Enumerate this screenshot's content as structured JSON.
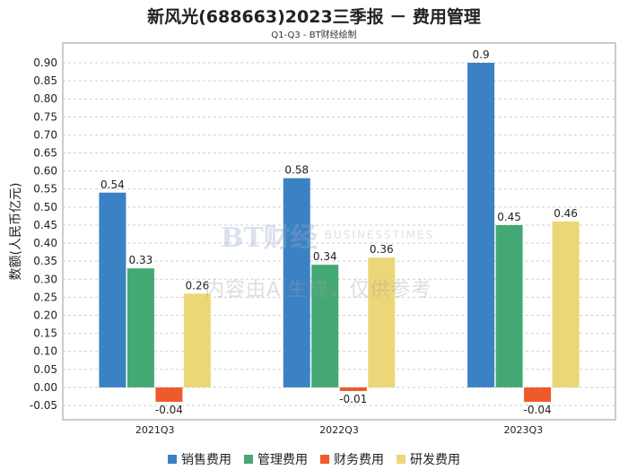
{
  "chart_data": {
    "type": "bar",
    "title": "新风光(688663)2023三季报 － 费用管理",
    "subtitle": "Q1-Q3 - BT财经绘制",
    "ylabel": "数额(人民币亿元)",
    "xlabel": "",
    "ylim": [
      -0.05,
      0.9
    ],
    "yticks": [
      "0.90",
      "0.85",
      "0.80",
      "0.75",
      "0.70",
      "0.65",
      "0.60",
      "0.55",
      "0.50",
      "0.45",
      "0.40",
      "0.35",
      "0.30",
      "0.25",
      "0.20",
      "0.15",
      "0.10",
      "0.05",
      "0.00",
      "-0.05"
    ],
    "categories": [
      "2021Q3",
      "2022Q3",
      "2023Q3"
    ],
    "series": [
      {
        "name": "销售费用",
        "color": "#3a82c4",
        "values": [
          0.54,
          0.58,
          0.9
        ],
        "labels": [
          "0.54",
          "0.58",
          "0.9"
        ]
      },
      {
        "name": "管理费用",
        "color": "#44a874",
        "values": [
          0.33,
          0.34,
          0.45
        ],
        "labels": [
          "0.33",
          "0.34",
          "0.45"
        ]
      },
      {
        "name": "财务费用",
        "color": "#ee5a2a",
        "values": [
          -0.04,
          -0.01,
          -0.04
        ],
        "labels": [
          "-0.04",
          "-0.01",
          "-0.04"
        ]
      },
      {
        "name": "研发费用",
        "color": "#ecd778",
        "values": [
          0.26,
          0.36,
          0.46
        ],
        "labels": [
          "0.26",
          "0.36",
          "0.46"
        ]
      }
    ],
    "grid": true,
    "legend": "bottom"
  },
  "watermark": {
    "brand": "BT财经",
    "sub": "BUSINESSTIMES",
    "notice": "内容由AI生成，仅供参考"
  }
}
